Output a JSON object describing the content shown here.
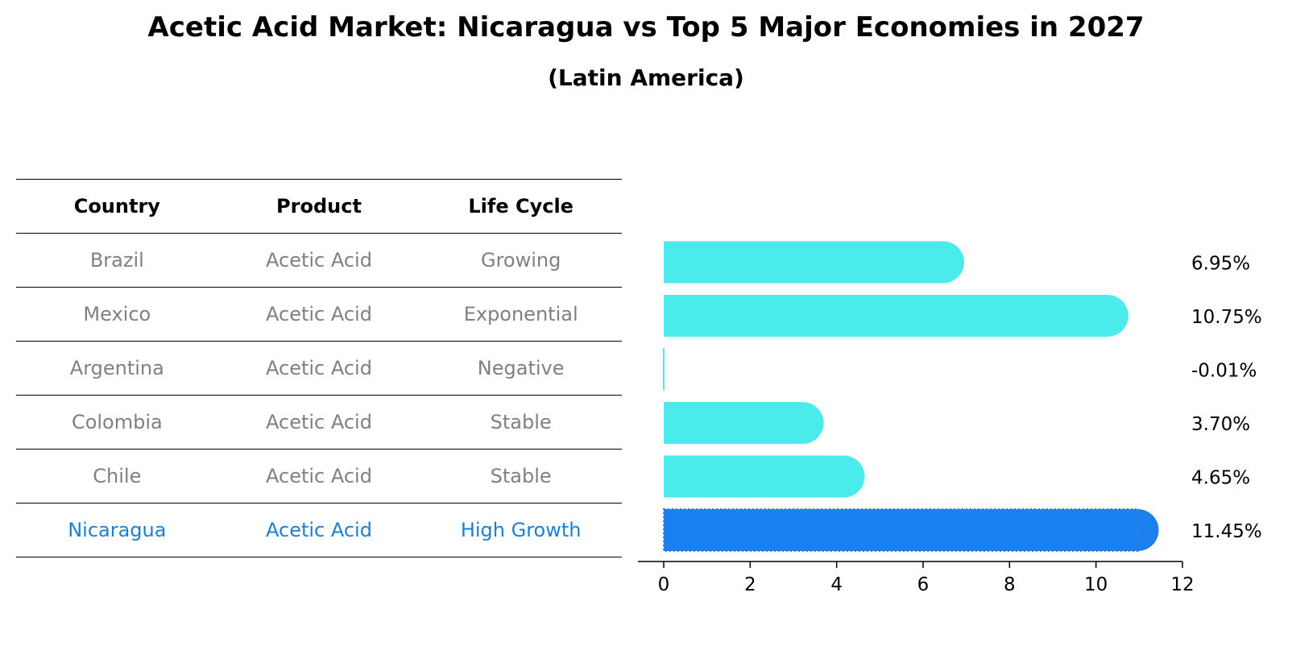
{
  "title": "Acetic Acid Market: Nicaragua vs Top 5 Major Economies in 2027",
  "subtitle": "(Latin America)",
  "table": {
    "headers": [
      "Country",
      "Product",
      "Life Cycle"
    ],
    "rows": [
      [
        "Brazil",
        "Acetic Acid",
        "Growing"
      ],
      [
        "Mexico",
        "Acetic Acid",
        "Exponential"
      ],
      [
        "Argentina",
        "Acetic Acid",
        "Negative"
      ],
      [
        "Colombia",
        "Acetic Acid",
        "Stable"
      ],
      [
        "Chile",
        "Acetic Acid",
        "Stable"
      ],
      [
        "Nicaragua",
        "Acetic Acid",
        "High Growth"
      ]
    ]
  },
  "colors": {
    "bar": "#4bebeb",
    "highlight_bar": "#1a80f0",
    "highlight_text": "#1a80d4",
    "row_text": "#808080"
  },
  "chart_data": {
    "type": "bar",
    "orientation": "horizontal",
    "categories": [
      "Brazil",
      "Mexico",
      "Argentina",
      "Colombia",
      "Chile",
      "Nicaragua"
    ],
    "values": [
      6.95,
      10.75,
      -0.01,
      3.7,
      4.65,
      11.45
    ],
    "value_labels": [
      "6.95%",
      "10.75%",
      "-0.01%",
      "3.70%",
      "4.65%",
      "11.45%"
    ],
    "highlight": "Nicaragua",
    "xlim": [
      0,
      12
    ],
    "xticks": [
      0,
      2,
      4,
      6,
      8,
      10,
      12
    ],
    "grid": false,
    "xlabel": "",
    "ylabel": ""
  }
}
